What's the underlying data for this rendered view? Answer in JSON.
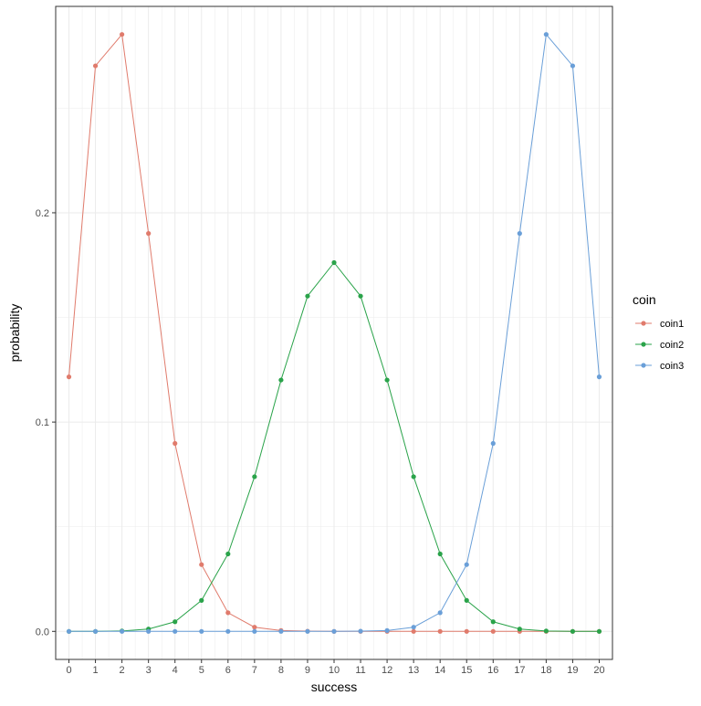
{
  "chart_data": {
    "type": "line",
    "xlabel": "success",
    "ylabel": "probability",
    "x": [
      0,
      1,
      2,
      3,
      4,
      5,
      6,
      7,
      8,
      9,
      10,
      11,
      12,
      13,
      14,
      15,
      16,
      17,
      18,
      19,
      20
    ],
    "xlim": [
      -0.5,
      20.5
    ],
    "ylim": [
      -0.0134,
      0.2986
    ],
    "y_ticks": [
      0.0,
      0.1,
      0.2
    ],
    "y_tick_labels": [
      "0.0",
      "0.1",
      "0.2"
    ],
    "grid": true,
    "legend": {
      "title": "coin",
      "position": "right"
    },
    "series": [
      {
        "name": "coin1",
        "color": "#E07B6C",
        "values": [
          0.1216,
          0.2702,
          0.2852,
          0.1901,
          0.0898,
          0.0319,
          0.0089,
          0.002,
          0.0004,
          0.0001,
          0.0,
          0.0,
          0.0,
          0.0,
          0.0,
          0.0,
          0.0,
          0.0,
          0.0,
          0.0,
          0.0
        ]
      },
      {
        "name": "coin2",
        "color": "#2AA34A",
        "values": [
          0.0,
          0.0,
          0.0002,
          0.0011,
          0.0046,
          0.0148,
          0.037,
          0.0739,
          0.1201,
          0.1602,
          0.1762,
          0.1602,
          0.1201,
          0.0739,
          0.037,
          0.0148,
          0.0046,
          0.0011,
          0.0002,
          0.0,
          0.0
        ]
      },
      {
        "name": "coin3",
        "color": "#6A9FD8",
        "values": [
          0.0,
          0.0,
          0.0,
          0.0,
          0.0,
          0.0,
          0.0,
          0.0,
          0.0,
          0.0,
          0.0,
          0.0001,
          0.0004,
          0.002,
          0.0089,
          0.0319,
          0.0898,
          0.1901,
          0.2852,
          0.2702,
          0.1216
        ]
      }
    ]
  }
}
